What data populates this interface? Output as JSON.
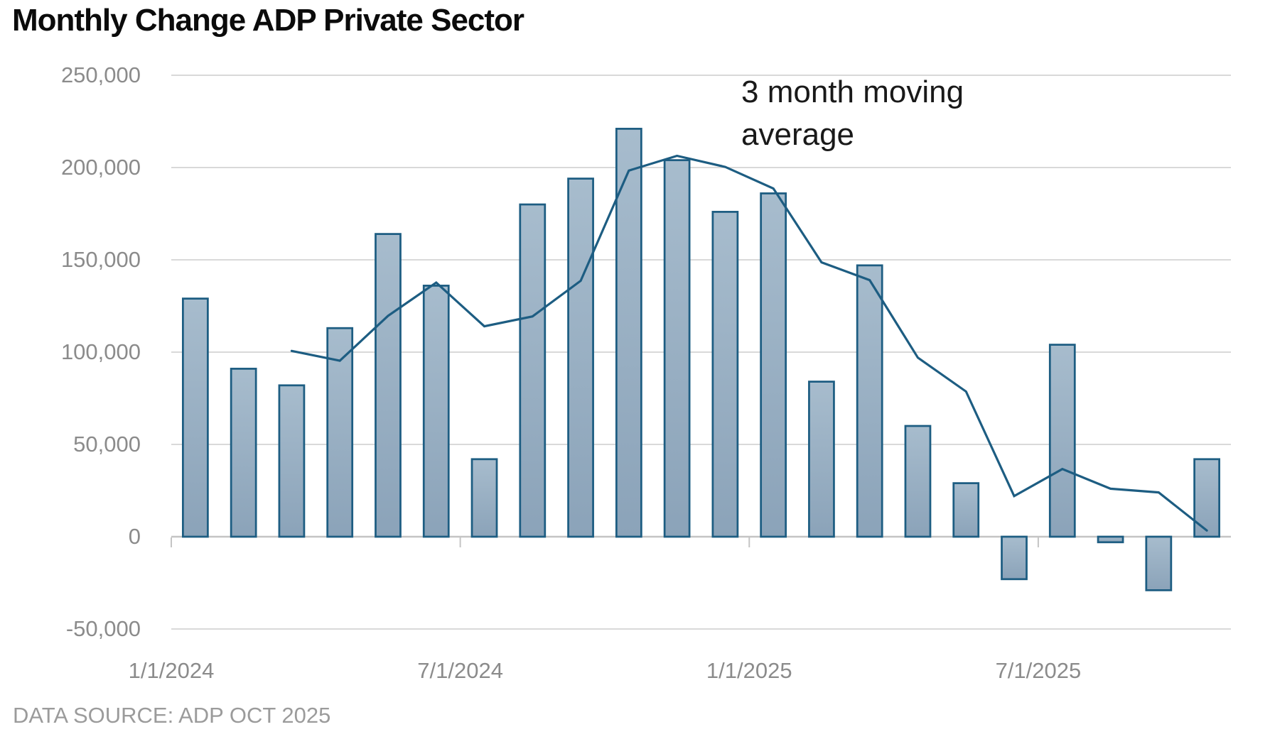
{
  "title": "Monthly Change ADP Private Sector",
  "annotation": {
    "line1": "3 month moving",
    "line2": "average"
  },
  "source": "DATA SOURCE: ADP OCT 2025",
  "colors": {
    "bar_fill_top": "#a7bccd",
    "bar_fill_bottom": "#8ba3b9",
    "bar_border": "#1d5d82",
    "line": "#1d5d82",
    "gridline": "#d9d9d9",
    "axis_line": "#c4c4c4",
    "tick_label": "#8b8b8b",
    "title_text": "#0b0b0b",
    "annotation_text": "#191919",
    "source_text": "#9b9b9b",
    "background": "#ffffff"
  },
  "chart_data": {
    "type": "bar",
    "title": "Monthly Change ADP Private Sector",
    "xlabel": "",
    "ylabel": "",
    "ylim": [
      -50000,
      250000
    ],
    "grid": true,
    "legend_position": "none",
    "annotation": "3 month moving average",
    "months": [
      "2024-01",
      "2024-02",
      "2024-03",
      "2024-04",
      "2024-05",
      "2024-06",
      "2024-07",
      "2024-08",
      "2024-09",
      "2024-10",
      "2024-11",
      "2024-12",
      "2025-01",
      "2025-02",
      "2025-03",
      "2025-04",
      "2025-05",
      "2025-06",
      "2025-07",
      "2025-08",
      "2025-09",
      "2025-10"
    ],
    "series": [
      {
        "name": "Monthly change",
        "type": "bar",
        "values": [
          129000,
          91000,
          82000,
          113000,
          164000,
          136000,
          42000,
          180000,
          194000,
          221000,
          204000,
          176000,
          186000,
          84000,
          147000,
          60000,
          29000,
          -23000,
          104000,
          -3000,
          -29000,
          42000
        ]
      },
      {
        "name": "3 month moving average",
        "type": "line",
        "values": [
          null,
          null,
          100667,
          95333,
          119667,
          137667,
          114000,
          119333,
          138667,
          198333,
          206333,
          200333,
          188667,
          148667,
          139000,
          97000,
          78667,
          22000,
          36667,
          26000,
          24000,
          3333
        ]
      }
    ],
    "y_ticks": [
      250000,
      200000,
      150000,
      100000,
      50000,
      0,
      -50000
    ],
    "y_tick_labels": [
      "250,000",
      "200,000",
      "150,000",
      "100,000",
      "50,000",
      "0",
      "-50,000"
    ],
    "x_tick_labels": [
      "1/1/2024",
      "7/1/2024",
      "1/1/2025",
      "7/1/2025"
    ],
    "x_tick_category_index": [
      0,
      6,
      12,
      18
    ]
  }
}
